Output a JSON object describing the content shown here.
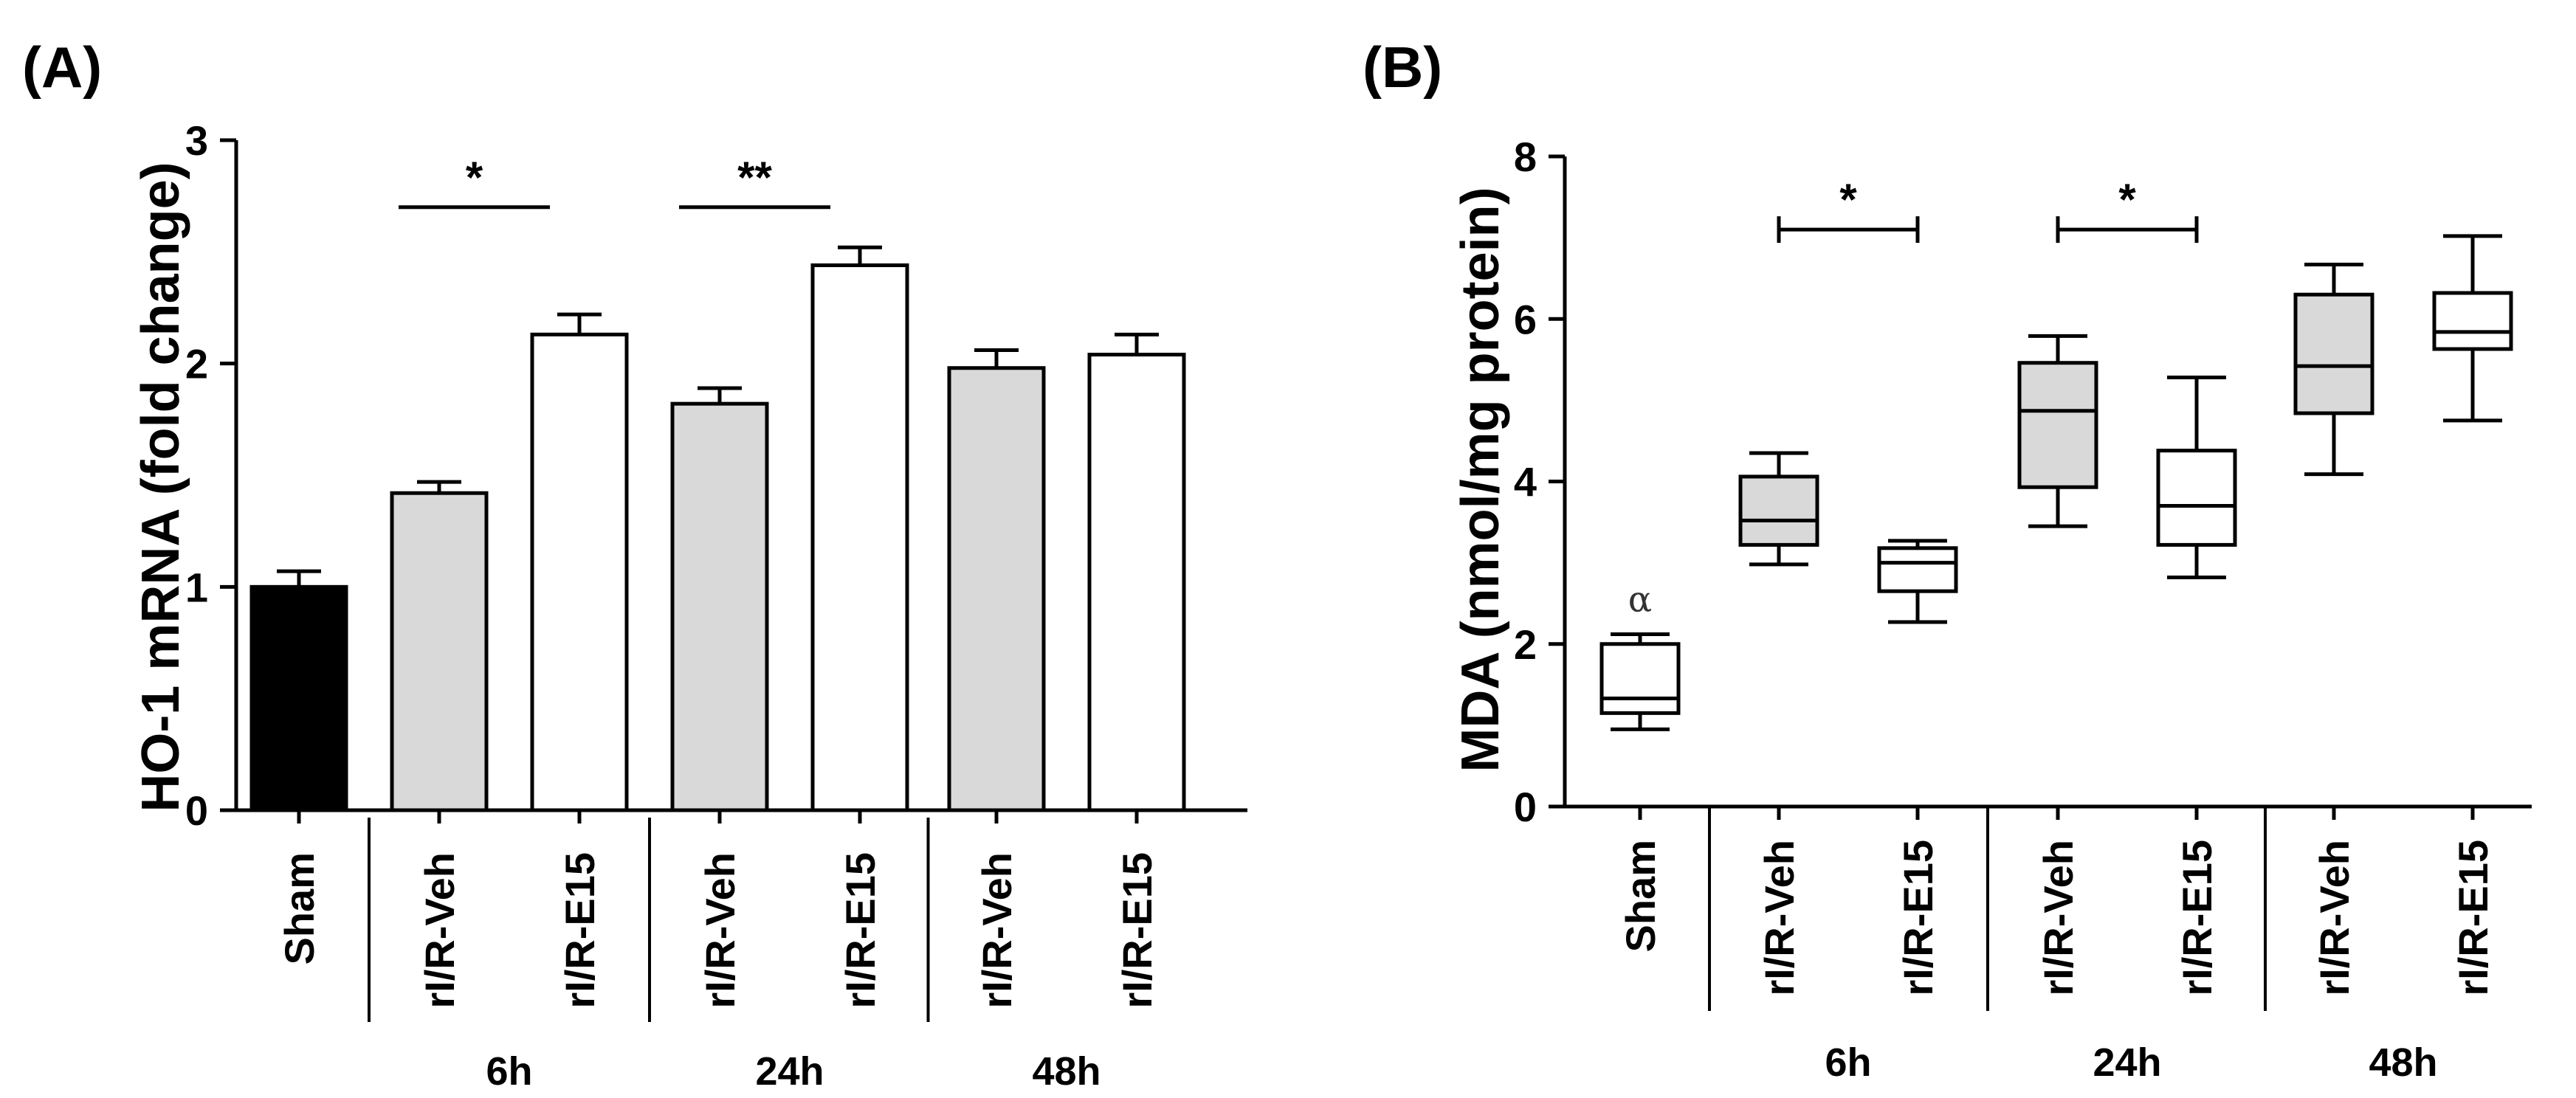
{
  "chart_data": [
    {
      "panel": "(A)",
      "type": "bar",
      "ylabel": "HO-1 mRNA (fold change)",
      "ylim": [
        0,
        3
      ],
      "yticks": [
        "0",
        "1",
        "2",
        "3"
      ],
      "categories": [
        "Sham",
        "rI/R-Veh",
        "rI/R-E15",
        "rI/R-Veh",
        "rI/R-E15",
        "rI/R-Veh",
        "rI/R-E15"
      ],
      "values": [
        1.0,
        1.42,
        2.13,
        1.82,
        2.44,
        1.98,
        2.04
      ],
      "errors": [
        0.07,
        0.05,
        0.09,
        0.07,
        0.08,
        0.08,
        0.09
      ],
      "colors": [
        "#000000",
        "#d9d9d9",
        "#ffffff",
        "#d9d9d9",
        "#ffffff",
        "#d9d9d9",
        "#ffffff"
      ],
      "groups": [
        {
          "label": "6h",
          "from": 1,
          "to": 2
        },
        {
          "label": "24h",
          "from": 3,
          "to": 4
        },
        {
          "label": "48h",
          "from": 5,
          "to": 6
        }
      ],
      "significance": [
        {
          "label": "*",
          "from": 1,
          "to": 2,
          "y": 2.7
        },
        {
          "label": "**",
          "from": 3,
          "to": 4,
          "y": 2.7
        }
      ]
    },
    {
      "panel": "(B)",
      "type": "box",
      "ylabel": "MDA (nmol/mg protein)",
      "ylim": [
        0,
        8
      ],
      "yticks": [
        "0",
        "2",
        "4",
        "6",
        "8"
      ],
      "categories": [
        "Sham",
        "rI/R-Veh",
        "rI/R-E15",
        "rI/R-Veh",
        "rI/R-E15",
        "rI/R-Veh",
        "rI/R-E15"
      ],
      "boxes": [
        {
          "min": 0.95,
          "q1": 1.15,
          "median": 1.33,
          "q3": 2.0,
          "max": 2.12
        },
        {
          "min": 2.98,
          "q1": 3.22,
          "median": 3.52,
          "q3": 4.06,
          "max": 4.35
        },
        {
          "min": 2.27,
          "q1": 2.65,
          "median": 3.0,
          "q3": 3.18,
          "max": 3.27
        },
        {
          "min": 3.45,
          "q1": 3.93,
          "median": 4.87,
          "q3": 5.46,
          "max": 5.79
        },
        {
          "min": 2.82,
          "q1": 3.22,
          "median": 3.7,
          "q3": 4.38,
          "max": 5.28
        },
        {
          "min": 4.09,
          "q1": 4.84,
          "median": 5.42,
          "q3": 6.3,
          "max": 6.67
        },
        {
          "min": 4.75,
          "q1": 5.63,
          "median": 5.84,
          "q3": 6.32,
          "max": 7.02
        }
      ],
      "colors": [
        "#ffffff",
        "#d9d9d9",
        "#ffffff",
        "#d9d9d9",
        "#ffffff",
        "#d9d9d9",
        "#ffffff"
      ],
      "groups": [
        {
          "label": "6h",
          "from": 1,
          "to": 2
        },
        {
          "label": "24h",
          "from": 3,
          "to": 4
        },
        {
          "label": "48h",
          "from": 5,
          "to": 6
        }
      ],
      "significance": [
        {
          "label": "*",
          "from": 1,
          "to": 2,
          "y": 7.1
        },
        {
          "label": "*",
          "from": 3,
          "to": 4,
          "y": 7.1
        }
      ],
      "annotations": [
        {
          "label": "α",
          "category": 0,
          "y": 2.4
        }
      ]
    }
  ]
}
